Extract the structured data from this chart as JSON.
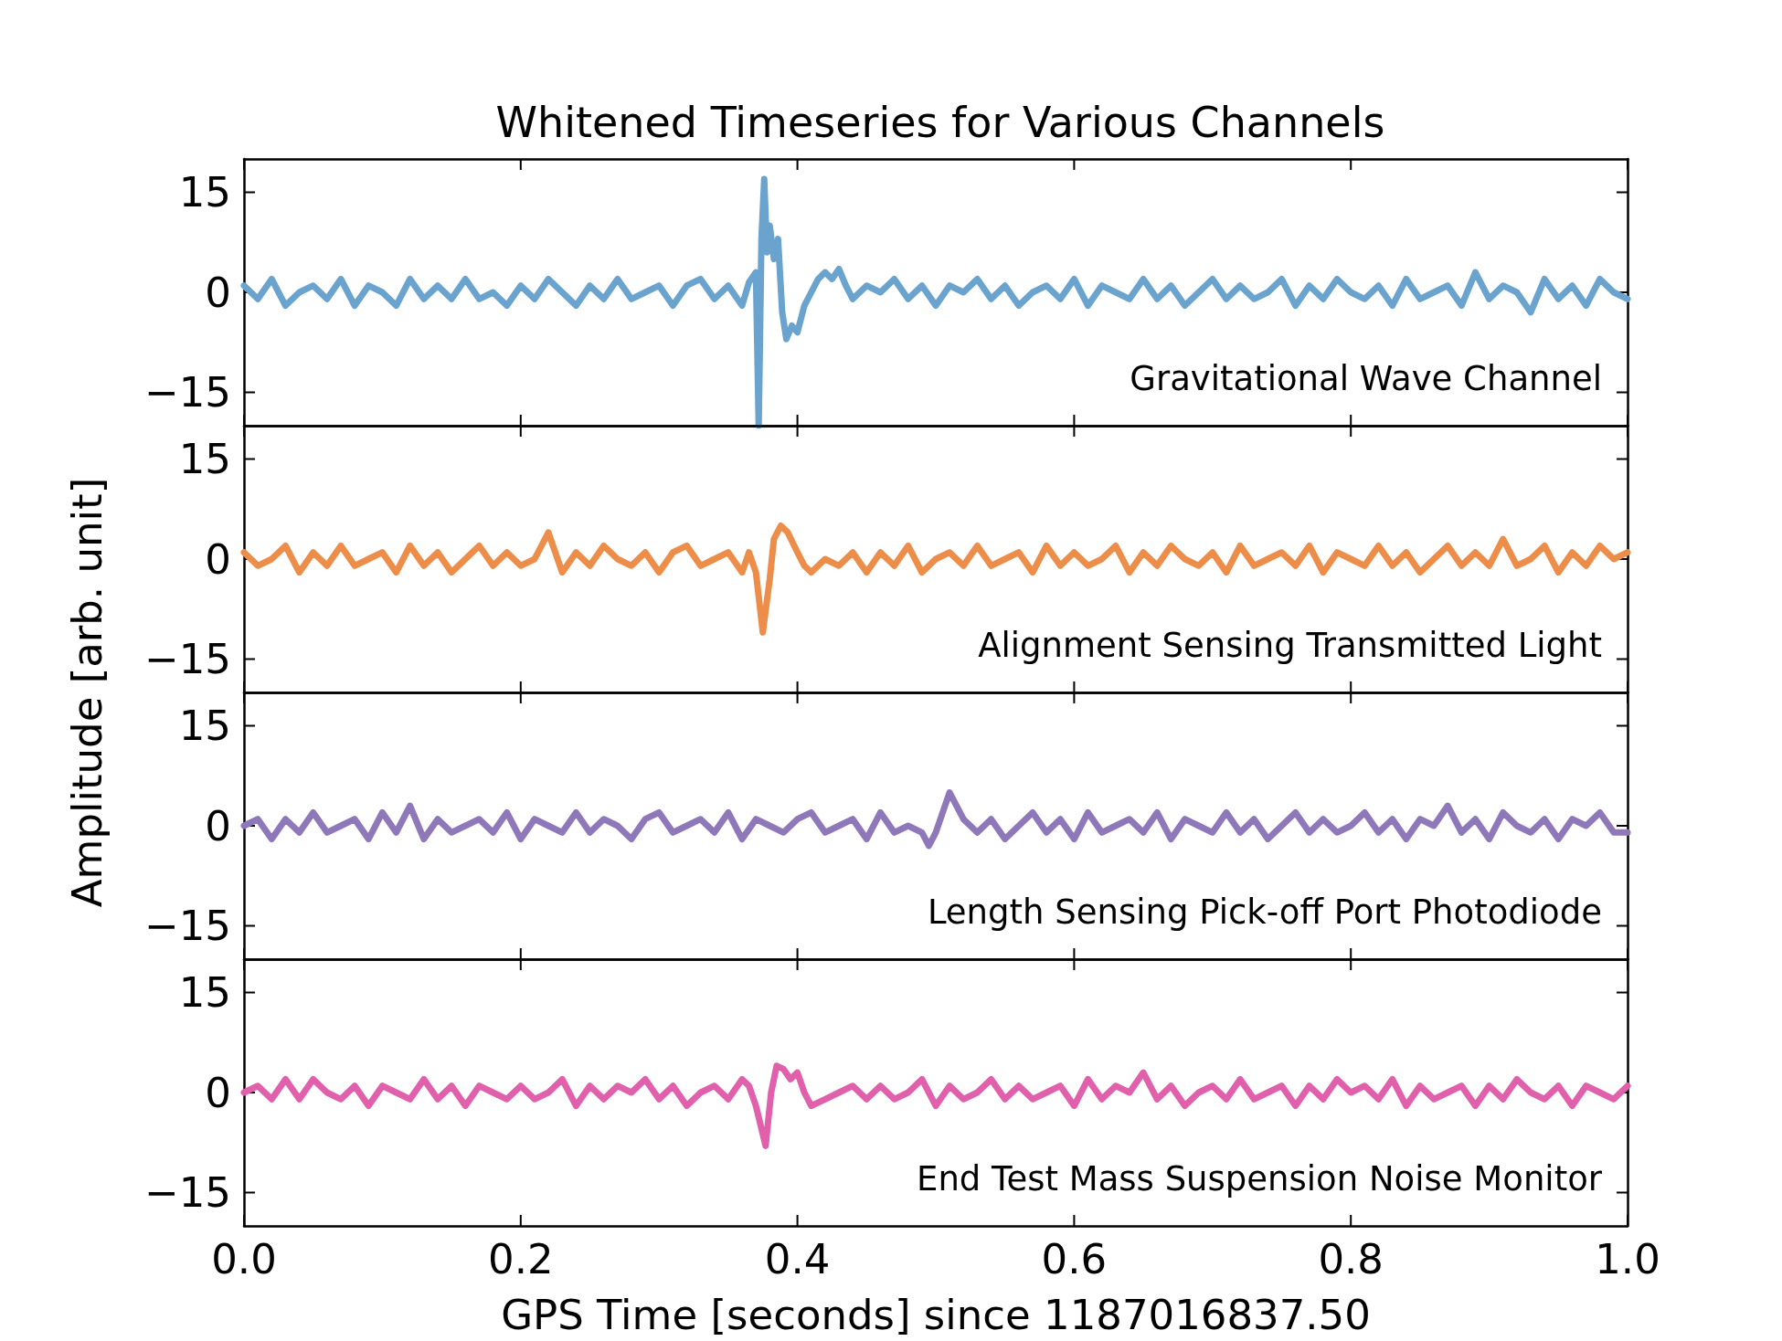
{
  "chart_data": [
    {
      "type": "line",
      "title": "Whitened Timeseries for Various Channels",
      "color": "#6aa3cd",
      "xlim": [
        0,
        1
      ],
      "ylim": [
        -20,
        20
      ],
      "tick_labels": "y",
      "xticks": [
        0,
        0.2,
        0.4,
        0.6,
        0.8,
        1
      ],
      "yticks": [
        {
          "value": -15,
          "label": "−15"
        },
        {
          "value": 0,
          "label": "0"
        },
        {
          "value": 15,
          "label": "15"
        }
      ],
      "annotations": [
        "Gravitational Wave Channel"
      ],
      "x": [
        0,
        0.01,
        0.02,
        0.03,
        0.04,
        0.05,
        0.06,
        0.07,
        0.08,
        0.09,
        0.1,
        0.11,
        0.12,
        0.13,
        0.14,
        0.15,
        0.16,
        0.17,
        0.18,
        0.19,
        0.2,
        0.21,
        0.22,
        0.23,
        0.24,
        0.25,
        0.26,
        0.27,
        0.28,
        0.29,
        0.3,
        0.31,
        0.32,
        0.33,
        0.34,
        0.35,
        0.36,
        0.365,
        0.37,
        0.372,
        0.374,
        0.376,
        0.378,
        0.38,
        0.383,
        0.386,
        0.389,
        0.392,
        0.396,
        0.4,
        0.405,
        0.41,
        0.415,
        0.42,
        0.425,
        0.43,
        0.435,
        0.44,
        0.45,
        0.46,
        0.47,
        0.48,
        0.49,
        0.5,
        0.51,
        0.52,
        0.53,
        0.54,
        0.55,
        0.56,
        0.57,
        0.58,
        0.59,
        0.6,
        0.61,
        0.62,
        0.63,
        0.64,
        0.65,
        0.66,
        0.67,
        0.68,
        0.69,
        0.7,
        0.71,
        0.72,
        0.73,
        0.74,
        0.75,
        0.76,
        0.77,
        0.78,
        0.79,
        0.8,
        0.81,
        0.82,
        0.83,
        0.84,
        0.85,
        0.86,
        0.87,
        0.88,
        0.89,
        0.9,
        0.91,
        0.92,
        0.93,
        0.94,
        0.95,
        0.96,
        0.97,
        0.98,
        0.99,
        1
      ],
      "values": [
        1,
        -1,
        2,
        -2,
        0,
        1,
        -1,
        2,
        -2,
        1,
        0,
        -2,
        2,
        -1,
        1,
        -1,
        2,
        -1,
        0,
        -2,
        1,
        -1,
        2,
        0,
        -2,
        1,
        -1,
        2,
        -1,
        0,
        1,
        -2,
        1,
        2,
        -1,
        1,
        -2,
        1.5,
        3,
        -20,
        8,
        17,
        6,
        10,
        5,
        8,
        -3,
        -7,
        -5,
        -6,
        -2,
        0,
        2,
        3,
        2,
        3.5,
        1,
        -1,
        1,
        0,
        2,
        -1,
        1,
        -2,
        1,
        0,
        2,
        -1,
        1,
        -2,
        0,
        1,
        -1,
        2,
        -2,
        1,
        0,
        -1,
        2,
        -1,
        1,
        -2,
        0,
        2,
        -1,
        1,
        -1,
        0,
        2,
        -2,
        1,
        -1,
        2,
        0,
        -1,
        1,
        -2,
        2,
        -1,
        0,
        1,
        -2,
        3,
        -1,
        1,
        0,
        -3,
        2,
        -1,
        1,
        -2,
        2,
        0,
        -1
      ]
    },
    {
      "type": "line",
      "ylabel": "Amplitude [arb. unit]",
      "color": "#ed8d4a",
      "xlim": [
        0,
        1
      ],
      "ylim": [
        -20,
        20
      ],
      "tick_labels": "y",
      "xticks": [
        0,
        0.2,
        0.4,
        0.6,
        0.8,
        1
      ],
      "yticks": [
        {
          "value": -15,
          "label": "−15"
        },
        {
          "value": 0,
          "label": "0"
        },
        {
          "value": 15,
          "label": "15"
        }
      ],
      "annotations": [
        "Alignment Sensing Transmitted Light"
      ],
      "x": [
        0,
        0.01,
        0.02,
        0.03,
        0.04,
        0.05,
        0.06,
        0.07,
        0.08,
        0.09,
        0.1,
        0.11,
        0.12,
        0.13,
        0.14,
        0.15,
        0.16,
        0.17,
        0.18,
        0.19,
        0.2,
        0.21,
        0.22,
        0.23,
        0.24,
        0.25,
        0.26,
        0.27,
        0.28,
        0.29,
        0.3,
        0.31,
        0.32,
        0.33,
        0.34,
        0.35,
        0.36,
        0.365,
        0.37,
        0.375,
        0.38,
        0.383,
        0.388,
        0.393,
        0.4,
        0.405,
        0.41,
        0.42,
        0.43,
        0.44,
        0.45,
        0.46,
        0.47,
        0.48,
        0.49,
        0.5,
        0.51,
        0.52,
        0.53,
        0.54,
        0.55,
        0.56,
        0.57,
        0.58,
        0.59,
        0.6,
        0.61,
        0.62,
        0.63,
        0.64,
        0.65,
        0.66,
        0.67,
        0.68,
        0.69,
        0.7,
        0.71,
        0.72,
        0.73,
        0.74,
        0.75,
        0.76,
        0.77,
        0.78,
        0.79,
        0.8,
        0.81,
        0.82,
        0.83,
        0.84,
        0.85,
        0.86,
        0.87,
        0.88,
        0.89,
        0.9,
        0.91,
        0.92,
        0.93,
        0.94,
        0.95,
        0.96,
        0.97,
        0.98,
        0.99,
        1
      ],
      "values": [
        1,
        -1,
        0,
        2,
        -2,
        1,
        -1,
        2,
        -1,
        0,
        1,
        -2,
        2,
        -1,
        1,
        -2,
        0,
        2,
        -1,
        1,
        -1,
        0,
        4,
        -2,
        1,
        -1,
        2,
        0,
        -1,
        1,
        -2,
        1,
        2,
        -1,
        0,
        1,
        -2,
        1,
        -2,
        -11,
        -3,
        3,
        5,
        4,
        1,
        -1,
        -2,
        0,
        -1,
        1,
        -2,
        1,
        -1,
        2,
        -2,
        0,
        1,
        -1,
        2,
        -1,
        0,
        1,
        -2,
        2,
        -1,
        1,
        -1,
        0,
        2,
        -2,
        1,
        -1,
        2,
        0,
        -1,
        1,
        -2,
        2,
        -1,
        0,
        1,
        -1,
        2,
        -2,
        1,
        0,
        -1,
        2,
        -1,
        1,
        -2,
        0,
        2,
        -1,
        1,
        -1,
        3,
        -1,
        0,
        2,
        -2,
        1,
        -1,
        2,
        0,
        1
      ]
    },
    {
      "type": "line",
      "color": "#8e78b9",
      "xlim": [
        0,
        1
      ],
      "ylim": [
        -20,
        20
      ],
      "tick_labels": "y",
      "xticks": [
        0,
        0.2,
        0.4,
        0.6,
        0.8,
        1
      ],
      "yticks": [
        {
          "value": -15,
          "label": "−15"
        },
        {
          "value": 0,
          "label": "0"
        },
        {
          "value": 15,
          "label": "15"
        }
      ],
      "annotations": [
        "Length Sensing Pick-off Port Photodiode"
      ],
      "x": [
        0,
        0.01,
        0.02,
        0.03,
        0.04,
        0.05,
        0.06,
        0.07,
        0.08,
        0.09,
        0.1,
        0.11,
        0.12,
        0.13,
        0.14,
        0.15,
        0.16,
        0.17,
        0.18,
        0.19,
        0.2,
        0.21,
        0.22,
        0.23,
        0.24,
        0.25,
        0.26,
        0.27,
        0.28,
        0.29,
        0.3,
        0.31,
        0.32,
        0.33,
        0.34,
        0.35,
        0.36,
        0.37,
        0.38,
        0.39,
        0.4,
        0.41,
        0.42,
        0.43,
        0.44,
        0.45,
        0.46,
        0.47,
        0.48,
        0.49,
        0.495,
        0.5,
        0.505,
        0.51,
        0.515,
        0.52,
        0.53,
        0.54,
        0.55,
        0.56,
        0.57,
        0.58,
        0.59,
        0.6,
        0.61,
        0.62,
        0.63,
        0.64,
        0.65,
        0.66,
        0.67,
        0.68,
        0.69,
        0.7,
        0.71,
        0.72,
        0.73,
        0.74,
        0.75,
        0.76,
        0.77,
        0.78,
        0.79,
        0.8,
        0.81,
        0.82,
        0.83,
        0.84,
        0.85,
        0.86,
        0.87,
        0.88,
        0.89,
        0.9,
        0.91,
        0.92,
        0.93,
        0.94,
        0.95,
        0.96,
        0.97,
        0.98,
        0.99,
        1
      ],
      "values": [
        0,
        1,
        -2,
        1,
        -1,
        2,
        -1,
        0,
        1,
        -2,
        2,
        -1,
        3,
        -2,
        1,
        -1,
        0,
        1,
        -1,
        2,
        -2,
        1,
        0,
        -1,
        2,
        -1,
        1,
        0,
        -2,
        1,
        2,
        -1,
        0,
        1,
        -1,
        2,
        -2,
        1,
        0,
        -1,
        1,
        2,
        -1,
        0,
        1,
        -2,
        2,
        -1,
        0,
        -1,
        -3,
        -1,
        2,
        5,
        3,
        1,
        -1,
        1,
        -2,
        0,
        2,
        -1,
        1,
        -2,
        2,
        -1,
        0,
        1,
        -1,
        2,
        -2,
        1,
        0,
        -1,
        2,
        -1,
        1,
        -2,
        0,
        2,
        -1,
        1,
        -1,
        0,
        2,
        -1,
        1,
        -2,
        1,
        0,
        3,
        -1,
        1,
        -2,
        2,
        0,
        -1,
        1,
        -2,
        1,
        0,
        2,
        -1,
        -1
      ]
    },
    {
      "type": "line",
      "xlabel": "GPS Time [seconds] since 1187016837.50",
      "color": "#e060ac",
      "xlim": [
        0,
        1
      ],
      "ylim": [
        -20,
        20
      ],
      "xticks": [
        {
          "value": 0,
          "label": "0.0"
        },
        {
          "value": 0.2,
          "label": "0.2"
        },
        {
          "value": 0.4,
          "label": "0.4"
        },
        {
          "value": 0.6,
          "label": "0.6"
        },
        {
          "value": 0.8,
          "label": "0.8"
        },
        {
          "value": 1,
          "label": "1.0"
        }
      ],
      "yticks": [
        {
          "value": -15,
          "label": "−15"
        },
        {
          "value": 0,
          "label": "0"
        },
        {
          "value": 15,
          "label": "15"
        }
      ],
      "annotations": [
        "End Test Mass Suspension Noise Monitor"
      ],
      "x": [
        0,
        0.01,
        0.02,
        0.03,
        0.04,
        0.05,
        0.06,
        0.07,
        0.08,
        0.09,
        0.1,
        0.11,
        0.12,
        0.13,
        0.14,
        0.15,
        0.16,
        0.17,
        0.18,
        0.19,
        0.2,
        0.21,
        0.22,
        0.23,
        0.24,
        0.25,
        0.26,
        0.27,
        0.28,
        0.29,
        0.3,
        0.31,
        0.32,
        0.33,
        0.34,
        0.35,
        0.36,
        0.365,
        0.37,
        0.377,
        0.381,
        0.385,
        0.39,
        0.395,
        0.4,
        0.405,
        0.41,
        0.42,
        0.43,
        0.44,
        0.45,
        0.46,
        0.47,
        0.48,
        0.49,
        0.5,
        0.51,
        0.52,
        0.53,
        0.54,
        0.55,
        0.56,
        0.57,
        0.58,
        0.59,
        0.6,
        0.61,
        0.62,
        0.63,
        0.64,
        0.65,
        0.66,
        0.67,
        0.68,
        0.69,
        0.7,
        0.71,
        0.72,
        0.73,
        0.74,
        0.75,
        0.76,
        0.77,
        0.78,
        0.79,
        0.8,
        0.81,
        0.82,
        0.83,
        0.84,
        0.85,
        0.86,
        0.87,
        0.88,
        0.89,
        0.9,
        0.91,
        0.92,
        0.93,
        0.94,
        0.95,
        0.96,
        0.97,
        0.98,
        0.99,
        1
      ],
      "values": [
        0,
        1,
        -1,
        2,
        -1,
        2,
        0,
        -1,
        1,
        -2,
        1,
        0,
        -1,
        2,
        -1,
        1,
        -2,
        1,
        0,
        -1,
        1,
        -1,
        0,
        2,
        -2,
        1,
        -1,
        1,
        0,
        2,
        -1,
        1,
        -2,
        0,
        1,
        -1,
        2,
        1,
        -2,
        -8,
        0,
        4,
        3.5,
        2,
        3,
        0,
        -2,
        -1,
        0,
        1,
        -1,
        1,
        -1,
        0,
        2,
        -2,
        1,
        -1,
        0,
        2,
        -1,
        1,
        -1,
        0,
        1,
        -2,
        2,
        -1,
        1,
        0,
        3,
        -1,
        1,
        -2,
        0,
        1,
        -1,
        2,
        -1,
        0,
        1,
        -2,
        1,
        -1,
        2,
        0,
        1,
        -1,
        2,
        -2,
        1,
        -1,
        0,
        1,
        -2,
        1,
        -1,
        2,
        0,
        -1,
        1,
        -2,
        1,
        0,
        -1,
        1
      ]
    }
  ]
}
